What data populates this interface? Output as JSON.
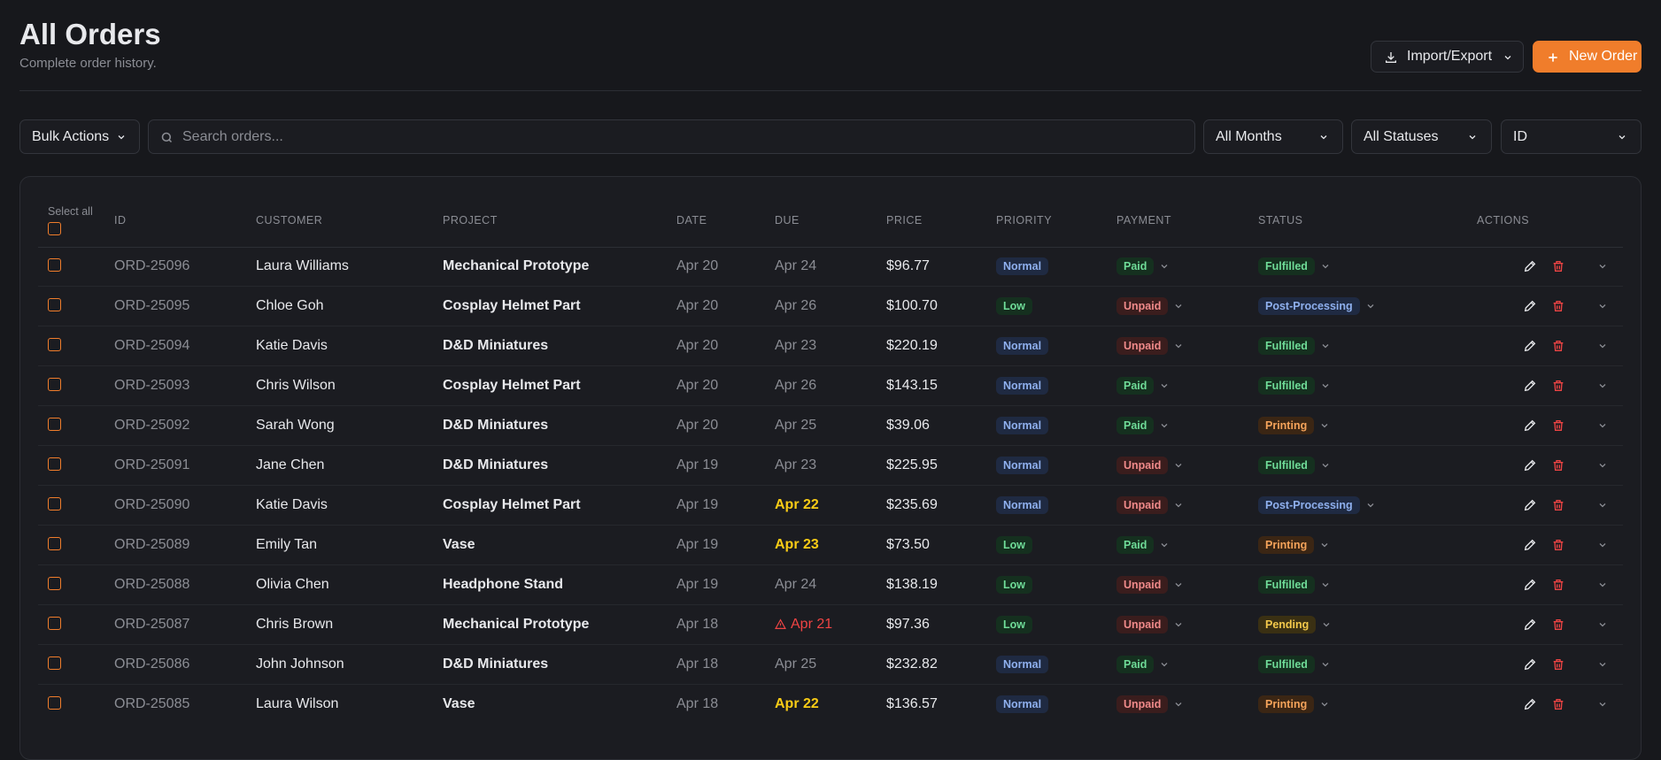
{
  "header": {
    "title": "All Orders",
    "subtitle": "Complete order history.",
    "import_button": "Import/Export",
    "new_button": "New Order"
  },
  "toolbar": {
    "bulk_actions": "Bulk Actions",
    "search_placeholder": "Search orders...",
    "filters": [
      "All Months",
      "All Statuses",
      "ID"
    ]
  },
  "table": {
    "select_all": "Select all",
    "columns": [
      "ID",
      "CUSTOMER",
      "PROJECT",
      "DATE",
      "DUE",
      "PRICE",
      "PRIORITY",
      "PAYMENT",
      "STATUS",
      "ACTIONS"
    ],
    "badge_styles": {
      "Normal": {
        "bg": "#1f2a42",
        "fg": "#8fb0ee"
      },
      "Low": {
        "bg": "#15301f",
        "fg": "#6fdc98"
      },
      "Paid": {
        "bg": "#15301f",
        "fg": "#6fdc98"
      },
      "Unpaid": {
        "bg": "#3a1d1d",
        "fg": "#f08a8a"
      },
      "Fulfilled": {
        "bg": "#15301f",
        "fg": "#6fdc98"
      },
      "Post-Processing": {
        "bg": "#1f2a42",
        "fg": "#8fb0ee"
      },
      "Printing": {
        "bg": "#3b2614",
        "fg": "#f5a35a"
      },
      "Pending": {
        "bg": "#3a3013",
        "fg": "#f3c84b"
      }
    },
    "rows": [
      {
        "id": "ORD-25096",
        "customer": "Laura Williams",
        "project": "Mechanical Prototype",
        "date": "Apr 20",
        "due": "Apr 24",
        "due_color": "#8b8d94",
        "price": "$96.77",
        "priority": "Normal",
        "payment": "Paid",
        "status": "Fulfilled"
      },
      {
        "id": "ORD-25095",
        "customer": "Chloe Goh",
        "project": "Cosplay Helmet Part",
        "date": "Apr 20",
        "due": "Apr 26",
        "due_color": "#8b8d94",
        "price": "$100.70",
        "priority": "Low",
        "payment": "Unpaid",
        "status": "Post-Processing"
      },
      {
        "id": "ORD-25094",
        "customer": "Katie Davis",
        "project": "D&D Miniatures",
        "date": "Apr 20",
        "due": "Apr 23",
        "due_color": "#8b8d94",
        "price": "$220.19",
        "priority": "Normal",
        "payment": "Unpaid",
        "status": "Fulfilled"
      },
      {
        "id": "ORD-25093",
        "customer": "Chris Wilson",
        "project": "Cosplay Helmet Part",
        "date": "Apr 20",
        "due": "Apr 26",
        "due_color": "#8b8d94",
        "price": "$143.15",
        "priority": "Normal",
        "payment": "Paid",
        "status": "Fulfilled"
      },
      {
        "id": "ORD-25092",
        "customer": "Sarah Wong",
        "project": "D&D Miniatures",
        "date": "Apr 20",
        "due": "Apr 25",
        "due_color": "#8b8d94",
        "price": "$39.06",
        "priority": "Normal",
        "payment": "Paid",
        "status": "Printing"
      },
      {
        "id": "ORD-25091",
        "customer": "Jane Chen",
        "project": "D&D Miniatures",
        "date": "Apr 19",
        "due": "Apr 23",
        "due_color": "#8b8d94",
        "price": "$225.95",
        "priority": "Normal",
        "payment": "Unpaid",
        "status": "Fulfilled"
      },
      {
        "id": "ORD-25090",
        "customer": "Katie Davis",
        "project": "Cosplay Helmet Part",
        "date": "Apr 19",
        "due": "Apr 22",
        "due_color": "#facc15",
        "price": "$235.69",
        "priority": "Normal",
        "payment": "Unpaid",
        "status": "Post-Processing"
      },
      {
        "id": "ORD-25089",
        "customer": "Emily Tan",
        "project": "Vase",
        "date": "Apr 19",
        "due": "Apr 23",
        "due_color": "#facc15",
        "price": "$73.50",
        "priority": "Low",
        "payment": "Paid",
        "status": "Printing"
      },
      {
        "id": "ORD-25088",
        "customer": "Olivia Chen",
        "project": "Headphone Stand",
        "date": "Apr 19",
        "due": "Apr 24",
        "due_color": "#8b8d94",
        "price": "$138.19",
        "priority": "Low",
        "payment": "Unpaid",
        "status": "Fulfilled"
      },
      {
        "id": "ORD-25087",
        "customer": "Chris Brown",
        "project": "Mechanical Prototype",
        "date": "Apr 18",
        "due": "Apr 21",
        "due_color": "#ef4444",
        "price": "$97.36",
        "priority": "Low",
        "payment": "Unpaid",
        "status": "Pending"
      },
      {
        "id": "ORD-25086",
        "customer": "John Johnson",
        "project": "D&D Miniatures",
        "date": "Apr 18",
        "due": "Apr 25",
        "due_color": "#8b8d94",
        "price": "$232.82",
        "priority": "Normal",
        "payment": "Paid",
        "status": "Fulfilled"
      },
      {
        "id": "ORD-25085",
        "customer": "Laura Wilson",
        "project": "Vase",
        "date": "Apr 18",
        "due": "Apr 22",
        "due_color": "#facc15",
        "price": "$136.57",
        "priority": "Normal",
        "payment": "Unpaid",
        "status": "Printing"
      }
    ]
  }
}
